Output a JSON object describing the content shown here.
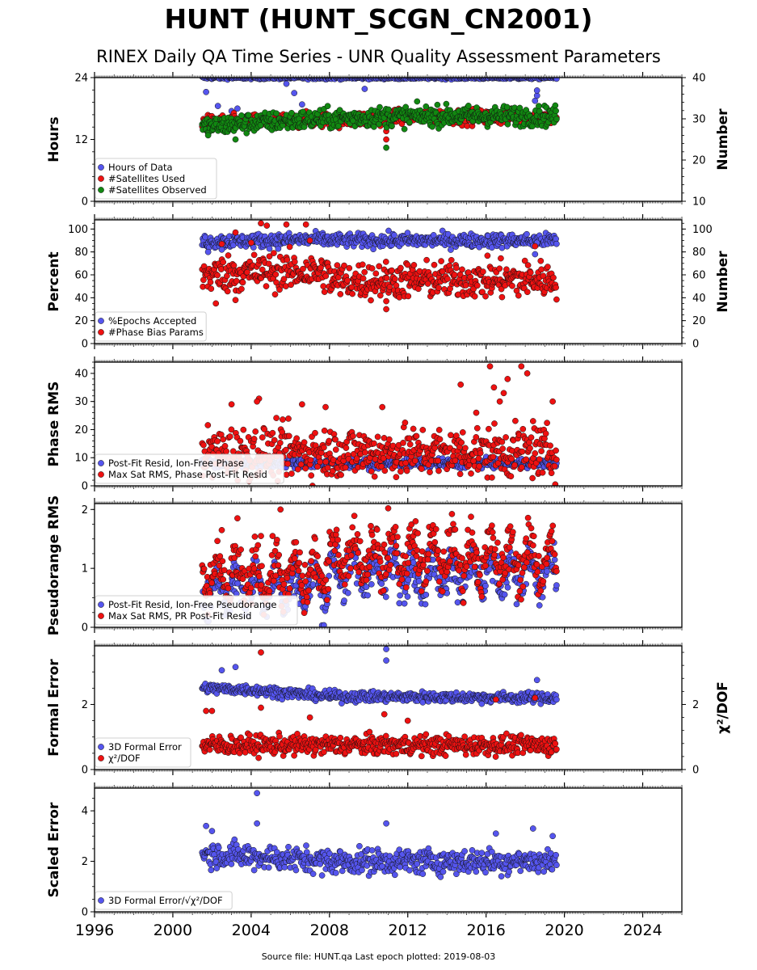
{
  "page": {
    "title": "HUNT (HUNT_SCGN_CN2001)",
    "subtitle": "RINEX Daily QA Time Series - UNR Quality Assessment Parameters",
    "footer": "Source file: HUNT.qa Last epoch plotted: 2019-08-03"
  },
  "colors": {
    "blue": "#5555ee",
    "red": "#ee1111",
    "green": "#118811",
    "edge": "#111111"
  },
  "chart_data": [
    {
      "type": "scatter",
      "ylabel": "Hours",
      "ylabel_right": "Number",
      "xlim": [
        1996,
        2026
      ],
      "ylim": [
        0,
        24
      ],
      "ylim_right": [
        10,
        40
      ],
      "yticks": [
        0,
        12,
        24
      ],
      "yticks_right": [
        10,
        20,
        30,
        40
      ],
      "legend_position": "lower-left",
      "series": [
        {
          "name": "Hours of Data",
          "color": "blue",
          "axis": "left",
          "x_range": [
            2001.5,
            2019.6
          ],
          "base": 24,
          "spread": 0.15,
          "outliers": [
            [
              2001.7,
              21.2
            ],
            [
              2002.3,
              18.5
            ],
            [
              2003.0,
              17.5
            ],
            [
              2003.3,
              18.0
            ],
            [
              2005.8,
              22.8
            ],
            [
              2006.2,
              21.0
            ],
            [
              2006.6,
              18.8
            ],
            [
              2009.8,
              21.8
            ],
            [
              2018.5,
              19.5
            ],
            [
              2018.6,
              20.5
            ],
            [
              2018.6,
              21.5
            ]
          ]
        },
        {
          "name": "#Satellites Used",
          "color": "red",
          "axis": "right",
          "x_range": [
            2001.5,
            2019.6
          ],
          "base": [
            [
              2001.5,
              29.0
            ],
            [
              2006.0,
              29.5
            ],
            [
              2010.0,
              30.0
            ],
            [
              2012.0,
              30.5
            ],
            [
              2019.6,
              30.5
            ]
          ],
          "spread": 0.9,
          "outliers": [
            [
              2010.9,
              25.0
            ],
            [
              2010.9,
              27.0
            ]
          ]
        },
        {
          "name": "#Satellites Observed",
          "color": "green",
          "axis": "right",
          "x_range": [
            2001.5,
            2019.6
          ],
          "base": [
            [
              2001.5,
              28.0
            ],
            [
              2004.0,
              29.0
            ],
            [
              2008.0,
              30.0
            ],
            [
              2010.5,
              30.5
            ],
            [
              2012.0,
              30.7
            ],
            [
              2019.6,
              30.7
            ]
          ],
          "spread": 1.2,
          "outliers": [
            [
              2010.9,
              23.0
            ],
            [
              2003.2,
              25.0
            ],
            [
              2001.8,
              26.0
            ]
          ]
        }
      ]
    },
    {
      "type": "scatter",
      "ylabel": "Percent",
      "ylabel_right": "Number",
      "xlim": [
        1996,
        2026
      ],
      "ylim": [
        0,
        108
      ],
      "ylim_right": [
        0,
        108
      ],
      "yticks": [
        0,
        20,
        40,
        60,
        80,
        100
      ],
      "yticks_right": [
        0,
        20,
        40,
        60,
        80,
        100
      ],
      "legend_position": "lower-left",
      "series": [
        {
          "name": "%Epochs Accepted",
          "color": "blue",
          "axis": "left",
          "x_range": [
            2001.5,
            2019.6
          ],
          "base": [
            [
              2001.5,
              89
            ],
            [
              2007.9,
              91
            ],
            [
              2008.0,
              90
            ],
            [
              2019.6,
              90
            ]
          ],
          "spread": 3.0,
          "outliers": [
            [
              2001.8,
              80
            ],
            [
              2002.5,
              82
            ],
            [
              2018.5,
              78
            ],
            [
              2018.6,
              88
            ]
          ]
        },
        {
          "name": "#Phase Bias Params",
          "color": "red",
          "axis": "right",
          "x_range": [
            2001.5,
            2019.6
          ],
          "base": [
            [
              2001.5,
              60
            ],
            [
              2005.0,
              63
            ],
            [
              2007.9,
              62
            ],
            [
              2008.0,
              55
            ],
            [
              2019.6,
              56
            ]
          ],
          "spread": 8.0,
          "outliers": [
            [
              2002.5,
              87
            ],
            [
              2003.2,
              97
            ],
            [
              2004.0,
              88
            ],
            [
              2004.5,
              105
            ],
            [
              2004.8,
              103
            ],
            [
              2005.8,
              104
            ],
            [
              2006.8,
              104
            ],
            [
              2007.0,
              90
            ],
            [
              2002.2,
              35
            ],
            [
              2003.2,
              38
            ],
            [
              2010.9,
              30
            ],
            [
              2010.9,
              37
            ],
            [
              2018.5,
              85
            ]
          ]
        }
      ]
    },
    {
      "type": "scatter",
      "ylabel": "Phase RMS",
      "xlim": [
        1996,
        2026
      ],
      "ylim": [
        0,
        44
      ],
      "yticks": [
        0,
        10,
        20,
        30,
        40
      ],
      "legend_position": "lower-left",
      "series": [
        {
          "name": "Post-Fit Resid, Ion-Free Phase",
          "color": "blue",
          "axis": "left",
          "x_range": [
            2001.5,
            2019.6
          ],
          "base": 8,
          "spread": 0.8,
          "outliers": []
        },
        {
          "name": "Max Sat RMS, Phase Post-Fit Resid",
          "color": "red",
          "axis": "left",
          "x_range": [
            2001.5,
            2019.6
          ],
          "base": 12,
          "spread": 4.5,
          "outliers": [
            [
              2003.0,
              29
            ],
            [
              2004.4,
              31
            ],
            [
              2004.3,
              30
            ],
            [
              2006.6,
              29
            ],
            [
              2007.8,
              28
            ],
            [
              2010.7,
              28
            ],
            [
              2014.7,
              36
            ],
            [
              2016.2,
              42.5
            ],
            [
              2016.4,
              35
            ],
            [
              2016.7,
              30
            ],
            [
              2016.9,
              33
            ],
            [
              2017.1,
              38
            ],
            [
              2017.8,
              42.5
            ],
            [
              2018.1,
              40
            ],
            [
              2018.4,
              23
            ],
            [
              2019.4,
              30
            ],
            [
              2015.5,
              26
            ]
          ]
        }
      ]
    },
    {
      "type": "scatter",
      "ylabel": "Pseudorange RMS",
      "xlim": [
        1996,
        2026
      ],
      "ylim": [
        0,
        2.1
      ],
      "yticks": [
        0,
        1,
        2
      ],
      "legend_position": "lower-left",
      "series": [
        {
          "name": "Post-Fit Resid, Ion-Free Pseudorange",
          "color": "blue",
          "axis": "left",
          "x_range": [
            2001.5,
            2019.6
          ],
          "base": [
            [
              2001.5,
              0.65
            ],
            [
              2007.9,
              0.7
            ],
            [
              2008.0,
              0.95
            ],
            [
              2019.6,
              0.9
            ]
          ],
          "spread": 0.18,
          "seasonal": 0.25,
          "outliers": []
        },
        {
          "name": "Max Sat RMS, PR Post-Fit Resid",
          "color": "red",
          "axis": "left",
          "x_range": [
            2001.5,
            2019.6
          ],
          "base": [
            [
              2001.5,
              0.85
            ],
            [
              2007.9,
              0.9
            ],
            [
              2008.0,
              1.25
            ],
            [
              2019.6,
              1.15
            ]
          ],
          "spread": 0.2,
          "seasonal": 0.3,
          "outliers": [
            [
              2002.5,
              1.65
            ],
            [
              2003.3,
              1.85
            ],
            [
              2004.5,
              1.55
            ],
            [
              2005.5,
              2.0
            ],
            [
              2011.0,
              2.02
            ],
            [
              2012.4,
              1.8
            ]
          ]
        }
      ]
    },
    {
      "type": "scatter",
      "ylabel": "Formal Error",
      "ylabel_right": "χ²/DOF",
      "xlim": [
        1996,
        2026
      ],
      "ylim": [
        0,
        3.8
      ],
      "ylim_right": [
        0,
        3.8
      ],
      "yticks": [
        0,
        2
      ],
      "yticks_right": [
        0,
        2
      ],
      "legend_position": "lower-left",
      "series": [
        {
          "name": "3D Formal Error",
          "color": "blue",
          "axis": "left",
          "x_range": [
            2001.5,
            2019.6
          ],
          "base": [
            [
              2001.5,
              2.5
            ],
            [
              2004.0,
              2.45
            ],
            [
              2008.0,
              2.25
            ],
            [
              2019.6,
              2.2
            ]
          ],
          "spread": 0.08,
          "outliers": [
            [
              2002.5,
              3.05
            ],
            [
              2003.2,
              3.15
            ],
            [
              2010.9,
              3.7
            ],
            [
              2010.9,
              3.35
            ],
            [
              2018.6,
              2.75
            ]
          ]
        },
        {
          "name": "χ²/DOF",
          "color": "red",
          "axis": "right",
          "x_range": [
            2001.5,
            2019.6
          ],
          "base": 0.75,
          "spread": 0.15,
          "outliers": [
            [
              2001.7,
              1.8
            ],
            [
              2002.0,
              1.8
            ],
            [
              2004.5,
              3.6
            ],
            [
              2004.5,
              1.9
            ],
            [
              2007.0,
              1.6
            ],
            [
              2010.8,
              1.7
            ],
            [
              2012.0,
              1.5
            ],
            [
              2016.5,
              2.15
            ],
            [
              2018.5,
              2.2
            ]
          ]
        }
      ]
    },
    {
      "type": "scatter",
      "ylabel": "Scaled Error",
      "xlabel": "",
      "xlim": [
        1996,
        2026
      ],
      "ylim": [
        0,
        4.9
      ],
      "yticks": [
        0,
        2,
        4
      ],
      "xticks": [
        1996,
        2000,
        2004,
        2008,
        2012,
        2016,
        2020,
        2024
      ],
      "legend_position": "lower-left",
      "series": [
        {
          "name": "3D Formal Error/√χ²/DOF",
          "color": "blue",
          "axis": "left",
          "x_range": [
            2001.5,
            2019.6
          ],
          "base": [
            [
              2001.5,
              2.3
            ],
            [
              2004.0,
              2.2
            ],
            [
              2008.0,
              2.0
            ],
            [
              2019.6,
              2.0
            ]
          ],
          "spread": 0.25,
          "outliers": [
            [
              2001.7,
              3.4
            ],
            [
              2004.3,
              4.7
            ],
            [
              2004.3,
              3.5
            ],
            [
              2002.0,
              3.2
            ],
            [
              2010.9,
              3.5
            ],
            [
              2016.5,
              3.1
            ],
            [
              2018.4,
              3.3
            ],
            [
              2019.4,
              3.0
            ]
          ]
        }
      ]
    }
  ]
}
